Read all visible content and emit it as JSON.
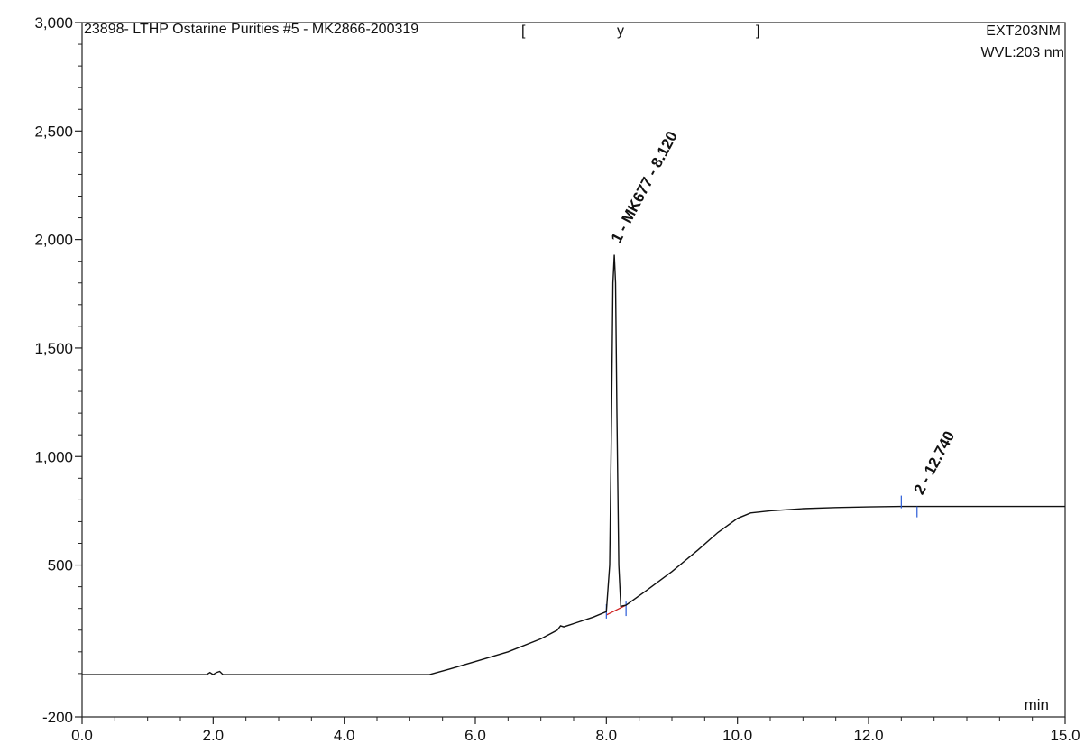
{
  "header": {
    "title": "23898- LTHP Ostarine Purities #5 - MK2866-200319",
    "bracket_text": "y",
    "channel": "EXT203NM",
    "wavelength": "WVL:203 nm"
  },
  "chart_data": {
    "type": "line",
    "title": "23898- LTHP Ostarine Purities #5 - MK2866-200319",
    "xlabel": "min",
    "ylabel": "",
    "xlim": [
      0,
      15
    ],
    "ylim": [
      -200,
      3000
    ],
    "x_ticks": [
      0,
      2,
      4,
      6,
      8,
      10,
      12,
      15
    ],
    "x_tick_labels": [
      "0.0",
      "2.0",
      "4.0",
      "6.0",
      "8.0",
      "10.0",
      "12.0",
      "15.0"
    ],
    "y_ticks": [
      -200,
      500,
      1000,
      1500,
      2000,
      2500,
      3000
    ],
    "y_tick_labels": [
      "-200",
      "500",
      "1,000",
      "1,500",
      "2,000",
      "2,500",
      "3,000"
    ],
    "grid": false,
    "series": [
      {
        "x": [
          0.0,
          1.9,
          1.95,
          2.0,
          2.05,
          2.1,
          2.15,
          2.3,
          5.3,
          5.6,
          6.0,
          6.5,
          7.0,
          7.25,
          7.3,
          7.35,
          7.5,
          7.8,
          8.0,
          8.05,
          8.08,
          8.1,
          8.12,
          8.14,
          8.16,
          8.19,
          8.22,
          8.3,
          8.6,
          9.0,
          9.4,
          9.7,
          10.0,
          10.2,
          10.5,
          11.0,
          11.5,
          12.0,
          12.5,
          13.0,
          14.0,
          15.0
        ],
        "y": [
          -5,
          -5,
          5,
          -5,
          5,
          10,
          -5,
          -5,
          -5,
          20,
          55,
          100,
          160,
          200,
          220,
          215,
          230,
          260,
          285,
          500,
          1200,
          1800,
          1930,
          1800,
          1200,
          500,
          310,
          315,
          380,
          470,
          570,
          650,
          715,
          740,
          750,
          760,
          765,
          768,
          770,
          770,
          770,
          770
        ]
      }
    ],
    "peaks": [
      {
        "label": "1 - MK677 - 8.120",
        "x": 8.12,
        "y": 1930
      },
      {
        "label": "2 - 12.740",
        "x": 12.74,
        "y": 770
      }
    ],
    "baselines": [
      {
        "x1": 8.0,
        "y1": 270,
        "x2": 8.3,
        "y2": 315
      }
    ]
  }
}
